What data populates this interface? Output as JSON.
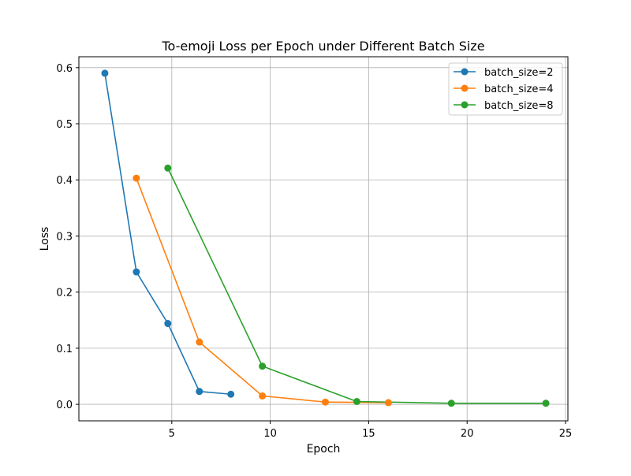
{
  "chart_data": {
    "type": "line",
    "title": "To-emoji Loss per Epoch under Different Batch Size",
    "xlabel": "Epoch",
    "ylabel": "Loss",
    "xlim": [
      0.28,
      25.12
    ],
    "ylim": [
      -0.0294,
      0.6194
    ],
    "xticks": [
      5,
      10,
      15,
      20,
      25
    ],
    "yticks": [
      0.0,
      0.1,
      0.2,
      0.3,
      0.4,
      0.5,
      0.6
    ],
    "xtick_labels": [
      "5",
      "10",
      "15",
      "20",
      "25"
    ],
    "ytick_labels": [
      "0.0",
      "0.1",
      "0.2",
      "0.3",
      "0.4",
      "0.5",
      "0.6"
    ],
    "grid": true,
    "legend_position": "top-right",
    "series": [
      {
        "name": "batch_size=2",
        "color": "#1f77b4",
        "x": [
          1.6,
          3.2,
          4.8,
          6.4,
          8.0
        ],
        "y": [
          0.59,
          0.236,
          0.144,
          0.023,
          0.018
        ]
      },
      {
        "name": "batch_size=4",
        "color": "#ff7f0e",
        "x": [
          3.2,
          6.4,
          9.6,
          12.8,
          16.0
        ],
        "y": [
          0.403,
          0.111,
          0.015,
          0.004,
          0.003
        ]
      },
      {
        "name": "batch_size=8",
        "color": "#2ca02c",
        "x": [
          4.8,
          9.6,
          14.4,
          19.2,
          24.0
        ],
        "y": [
          0.421,
          0.068,
          0.005,
          0.002,
          0.002
        ]
      }
    ]
  }
}
